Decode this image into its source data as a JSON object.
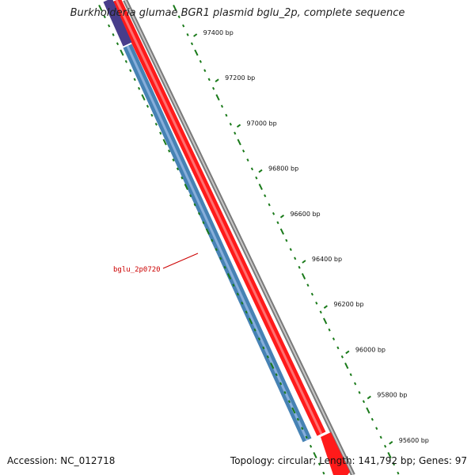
{
  "title": "Burkholderia glumae BGR1 plasmid bglu_2p, complete sequence",
  "footer": {
    "accession": "Accession: NC_012718",
    "summary": "Topology: circular; Length: 141,792 bp; Genes: 97"
  },
  "gene_label": "bglu_2p0720",
  "ticks": [
    {
      "label": "97400 bp"
    },
    {
      "label": "97200 bp"
    },
    {
      "label": "97000 bp"
    },
    {
      "label": "96800 bp"
    },
    {
      "label": "96600 bp"
    },
    {
      "label": "96400 bp"
    },
    {
      "label": "96200 bp"
    },
    {
      "label": "96000 bp"
    },
    {
      "label": "95800 bp"
    },
    {
      "label": "95600 bp"
    }
  ],
  "colors": {
    "forward_gene": "#ff1a1a",
    "reverse_gene": "#4682b4",
    "reverse_gene_alt": "#483d8b",
    "backbone": "#808080",
    "ticks": "#1a7a1a",
    "gene_label": "#cc0000"
  }
}
